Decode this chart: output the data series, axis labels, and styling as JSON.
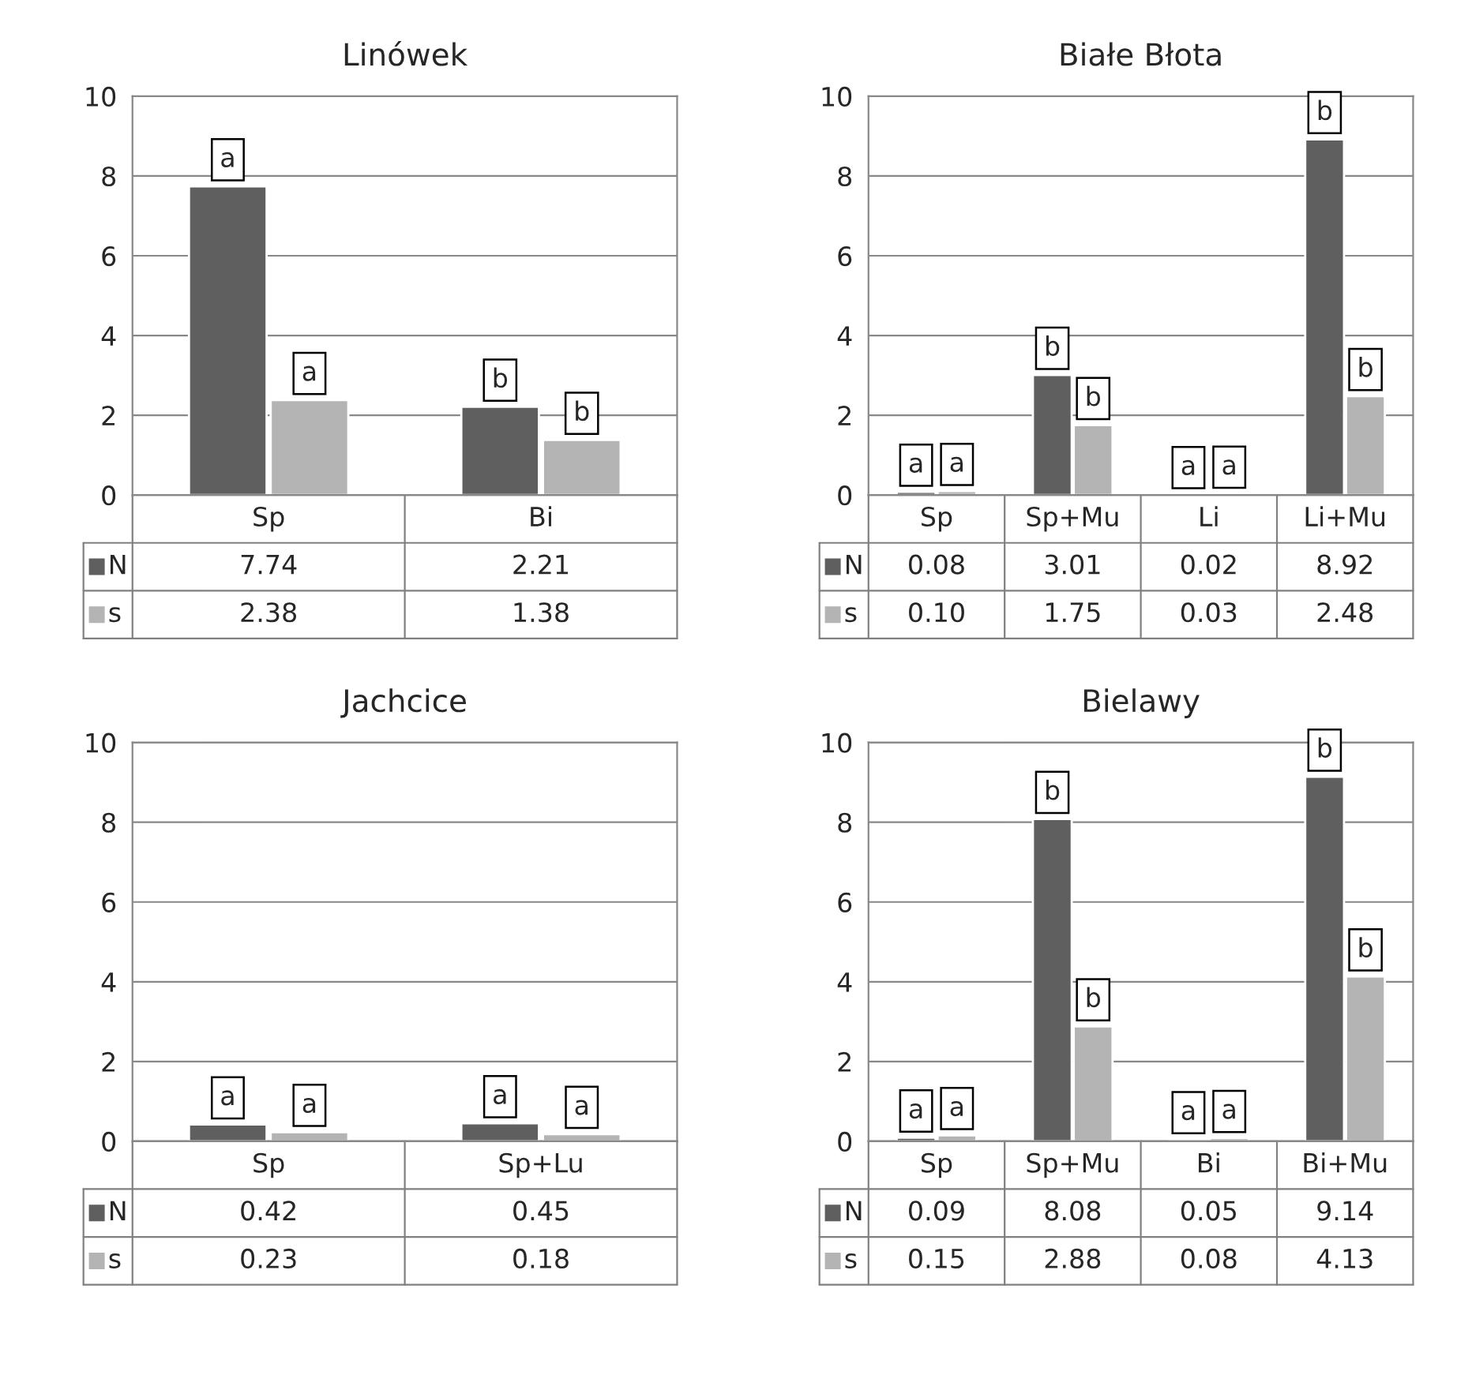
{
  "chart_data": [
    {
      "type": "bar",
      "title": "Linówek",
      "legend": "bottom left",
      "categories": [
        "Sp",
        "Bi"
      ],
      "ylim": [
        0,
        10
      ],
      "yticks": [
        0,
        2,
        4,
        6,
        8,
        10
      ],
      "grid": "y",
      "series": [
        {
          "name": "N",
          "color": "#5f5f5f",
          "values": [
            7.74,
            2.21
          ],
          "value_labels": [
            "7.74",
            "2.21"
          ]
        },
        {
          "name": "s",
          "color": "#b4b4b4",
          "values": [
            2.38,
            1.38
          ],
          "value_labels": [
            "2.38",
            "1.38"
          ]
        }
      ],
      "annotations": [
        {
          "text": "a",
          "x": "Sp",
          "y": 7.74
        },
        {
          "text": "a",
          "x": "Sp",
          "y": 2.38
        },
        {
          "text": "b",
          "x": "Bi",
          "y": 2.21
        },
        {
          "text": "b",
          "x": "Bi",
          "y": 1.38
        }
      ]
    },
    {
      "type": "bar",
      "title": "Białe Błota",
      "legend": "bottom left",
      "categories": [
        "Sp",
        "Sp+Mu",
        "Li",
        "Li+Mu"
      ],
      "ylim": [
        0,
        10
      ],
      "yticks": [
        0,
        2,
        4,
        6,
        8,
        10
      ],
      "grid": "y",
      "series": [
        {
          "name": "N",
          "color": "#5f5f5f",
          "values": [
            0.08,
            3.01,
            0.02,
            8.92
          ],
          "value_labels": [
            "0.08",
            "3.01",
            "0.02",
            "8.92"
          ]
        },
        {
          "name": "s",
          "color": "#b4b4b4",
          "values": [
            0.1,
            1.75,
            0.03,
            2.48
          ],
          "value_labels": [
            "0.10",
            "1.75",
            "0.03",
            "2.48"
          ]
        }
      ],
      "annotations": [
        {
          "text": "a",
          "x": "Sp",
          "y": 0.08
        },
        {
          "text": "a",
          "x": "Sp",
          "y": 0.1
        },
        {
          "text": "b",
          "x": "Sp+Mu",
          "y": 3.01
        },
        {
          "text": "b",
          "x": "Sp+Mu",
          "y": 1.75
        },
        {
          "text": "a",
          "x": "Li",
          "y": 0.02
        },
        {
          "text": "a",
          "x": "Li",
          "y": 0.03
        },
        {
          "text": "b",
          "x": "Li+Mu",
          "y": 8.92
        },
        {
          "text": "b",
          "x": "Li+Mu",
          "y": 2.48
        }
      ]
    },
    {
      "type": "bar",
      "title": "Jachcice",
      "legend": "bottom left",
      "categories": [
        "Sp",
        "Sp+Lu"
      ],
      "ylim": [
        0,
        10
      ],
      "yticks": [
        0,
        2,
        4,
        6,
        8,
        10
      ],
      "grid": "y",
      "series": [
        {
          "name": "N",
          "color": "#5f5f5f",
          "values": [
            0.42,
            0.45
          ],
          "value_labels": [
            "0.42",
            "0.45"
          ]
        },
        {
          "name": "s",
          "color": "#b4b4b4",
          "values": [
            0.23,
            0.18
          ],
          "value_labels": [
            "0.23",
            "0.18"
          ]
        }
      ],
      "annotations": [
        {
          "text": "a",
          "x": "Sp",
          "y": 0.42
        },
        {
          "text": "a",
          "x": "Sp",
          "y": 0.23
        },
        {
          "text": "a",
          "x": "Sp+Lu",
          "y": 0.45
        },
        {
          "text": "a",
          "x": "Sp+Lu",
          "y": 0.18
        }
      ]
    },
    {
      "type": "bar",
      "title": "Bielawy",
      "legend": "bottom left",
      "categories": [
        "Sp",
        "Sp+Mu",
        "Bi",
        "Bi+Mu"
      ],
      "ylim": [
        0,
        10
      ],
      "yticks": [
        0,
        2,
        4,
        6,
        8,
        10
      ],
      "grid": "y",
      "series": [
        {
          "name": "N",
          "color": "#5f5f5f",
          "values": [
            0.09,
            8.08,
            0.05,
            9.14
          ],
          "value_labels": [
            "0.09",
            "8.08",
            "0.05",
            "9.14"
          ]
        },
        {
          "name": "s",
          "color": "#b4b4b4",
          "values": [
            0.15,
            2.88,
            0.08,
            4.13
          ],
          "value_labels": [
            "0.15",
            "2.88",
            "0.08",
            "4.13"
          ]
        }
      ],
      "annotations": [
        {
          "text": "a",
          "x": "Sp",
          "y": 0.09
        },
        {
          "text": "a",
          "x": "Sp",
          "y": 0.15
        },
        {
          "text": "b",
          "x": "Sp+Mu",
          "y": 8.08
        },
        {
          "text": "b",
          "x": "Sp+Mu",
          "y": 2.88
        },
        {
          "text": "a",
          "x": "Bi",
          "y": 0.05
        },
        {
          "text": "a",
          "x": "Bi",
          "y": 0.08
        },
        {
          "text": "b",
          "x": "Bi+Mu",
          "y": 9.14
        },
        {
          "text": "b",
          "x": "Bi+Mu",
          "y": 4.13
        }
      ]
    }
  ]
}
